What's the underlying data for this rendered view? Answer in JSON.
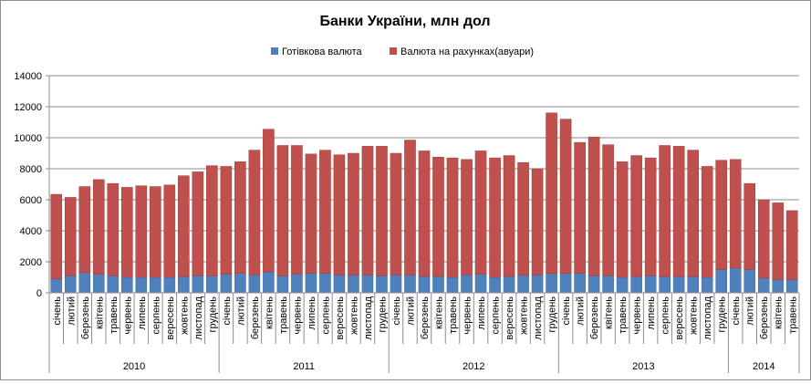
{
  "chart_data": {
    "type": "bar",
    "stacked": true,
    "title": "Банки України, млн дол",
    "legend_position": "top",
    "grid": true,
    "ylim": [
      0,
      14000
    ],
    "y_ticks": [
      "0",
      "2000",
      "4000",
      "6000",
      "8000",
      "10000",
      "12000",
      "14000"
    ],
    "series": [
      {
        "name": "Готівкова валюта",
        "color": "#4f81bd",
        "values": [
          900,
          1100,
          1300,
          1200,
          1100,
          1000,
          1000,
          1000,
          1000,
          1050,
          1100,
          1100,
          1200,
          1250,
          1150,
          1350,
          1100,
          1200,
          1250,
          1250,
          1150,
          1150,
          1150,
          1100,
          1150,
          1150,
          1050,
          1050,
          1000,
          1150,
          1200,
          1000,
          1050,
          1150,
          1150,
          1250,
          1250,
          1250,
          1100,
          1100,
          1000,
          1050,
          1100,
          1050,
          1050,
          1050,
          1000,
          1500,
          1600,
          1500,
          950,
          850,
          850
        ]
      },
      {
        "name": "Валюта на рахунках(авуари)",
        "color": "#c0504d",
        "values": [
          5450,
          5050,
          5550,
          6100,
          5950,
          5800,
          5900,
          5850,
          5950,
          6500,
          6700,
          7100,
          6950,
          7200,
          8050,
          9200,
          8400,
          8300,
          7700,
          7950,
          7750,
          7850,
          8300,
          8350,
          7850,
          8700,
          8100,
          7700,
          7700,
          7450,
          7950,
          7700,
          7800,
          7250,
          6850,
          10350,
          9950,
          8450,
          8950,
          8450,
          7450,
          7800,
          7600,
          8450,
          8400,
          8150,
          7150,
          7050,
          7000,
          5550,
          5050,
          4950,
          4450
        ]
      }
    ],
    "categories": [
      "січень",
      "лютий",
      "березень",
      "квітень",
      "травень",
      "червень",
      "липень",
      "серпень",
      "вересень",
      "жовтень",
      "листопад",
      "грудень",
      "січень",
      "лютий",
      "березень",
      "квітень",
      "травень",
      "червень",
      "липень",
      "серпень",
      "вересень",
      "жовтень",
      "листопад",
      "грудень",
      "січень",
      "лютий",
      "березень",
      "квітень",
      "травень",
      "червень",
      "липень",
      "серпень",
      "вересень",
      "жовтень",
      "листопад",
      "грудень",
      "січень",
      "лютий",
      "березень",
      "квітень",
      "травень",
      "червень",
      "липень",
      "серпень",
      "вересень",
      "жовтень",
      "листопад",
      "грудень",
      "січень",
      "лютий",
      "березень",
      "квітень",
      "травень"
    ],
    "years": [
      {
        "label": "2010",
        "count": 12
      },
      {
        "label": "2011",
        "count": 12
      },
      {
        "label": "2012",
        "count": 12
      },
      {
        "label": "2013",
        "count": 12
      },
      {
        "label": "2014",
        "count": 5
      }
    ]
  }
}
